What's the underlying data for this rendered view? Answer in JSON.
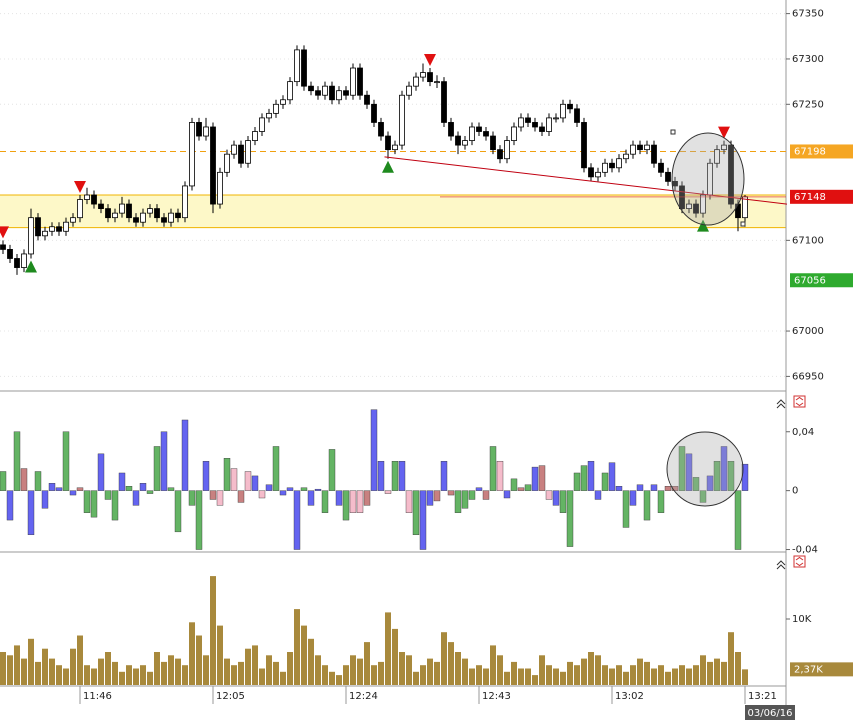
{
  "chart_data": [
    {
      "type": "candlestick",
      "categories": [
        null,
        null,
        null,
        null,
        null,
        null,
        null,
        null,
        null,
        null,
        null,
        "11:46",
        null,
        null,
        null,
        null,
        null,
        null,
        null,
        null,
        null,
        null,
        null,
        null,
        null,
        null,
        null,
        null,
        null,
        null,
        "12:05",
        null,
        null,
        null,
        null,
        null,
        null,
        null,
        null,
        null,
        null,
        null,
        null,
        null,
        null,
        null,
        null,
        null,
        null,
        "12:24",
        null,
        null,
        null,
        null,
        null,
        null,
        null,
        null,
        null,
        null,
        null,
        null,
        null,
        null,
        null,
        null,
        null,
        null,
        "12:43",
        null,
        null,
        null,
        null,
        null,
        null,
        null,
        null,
        null,
        null,
        null,
        null,
        null,
        null,
        null,
        null,
        null,
        null,
        "13:02",
        null,
        null,
        null,
        null,
        null,
        null,
        null,
        null,
        null,
        null,
        null,
        null,
        null,
        null,
        null,
        null,
        null,
        null,
        "13:21"
      ],
      "candles": [
        [
          67095,
          67100,
          67085,
          67090
        ],
        [
          67090,
          67095,
          67075,
          67080
        ],
        [
          67080,
          67085,
          67062,
          67070
        ],
        [
          67070,
          67090,
          67065,
          67085
        ],
        [
          67085,
          67135,
          67080,
          67125
        ],
        [
          67125,
          67130,
          67100,
          67105
        ],
        [
          67105,
          67115,
          67100,
          67110
        ],
        [
          67110,
          67120,
          67105,
          67115
        ],
        [
          67115,
          67120,
          67105,
          67110
        ],
        [
          67110,
          67125,
          67105,
          67120
        ],
        [
          67120,
          67130,
          67115,
          67125
        ],
        [
          67125,
          67150,
          67120,
          67145
        ],
        [
          67145,
          67158,
          67140,
          67150
        ],
        [
          67150,
          67155,
          67135,
          67140
        ],
        [
          67140,
          67145,
          67130,
          67135
        ],
        [
          67135,
          67140,
          67120,
          67125
        ],
        [
          67125,
          67135,
          67120,
          67130
        ],
        [
          67130,
          67148,
          67125,
          67140
        ],
        [
          67140,
          67145,
          67120,
          67125
        ],
        [
          67125,
          67130,
          67115,
          67120
        ],
        [
          67120,
          67135,
          67115,
          67130
        ],
        [
          67130,
          67140,
          67125,
          67135
        ],
        [
          67135,
          67140,
          67120,
          67125
        ],
        [
          67125,
          67130,
          67115,
          67120
        ],
        [
          67120,
          67135,
          67115,
          67130
        ],
        [
          67130,
          67135,
          67120,
          67125
        ],
        [
          67125,
          67165,
          67120,
          67160
        ],
        [
          67160,
          67235,
          67155,
          67230
        ],
        [
          67230,
          67235,
          67210,
          67215
        ],
        [
          67215,
          67235,
          67210,
          67225
        ],
        [
          67225,
          67230,
          67130,
          67140
        ],
        [
          67140,
          67180,
          67135,
          67175
        ],
        [
          67175,
          67200,
          67170,
          67195
        ],
        [
          67195,
          67210,
          67190,
          67205
        ],
        [
          67205,
          67210,
          67180,
          67185
        ],
        [
          67185,
          67215,
          67180,
          67210
        ],
        [
          67210,
          67225,
          67205,
          67220
        ],
        [
          67220,
          67240,
          67215,
          67235
        ],
        [
          67235,
          67245,
          67230,
          67240
        ],
        [
          67240,
          67255,
          67235,
          67250
        ],
        [
          67250,
          67260,
          67245,
          67255
        ],
        [
          67255,
          67280,
          67250,
          67275
        ],
        [
          67275,
          67315,
          67270,
          67310
        ],
        [
          67310,
          67315,
          67265,
          67270
        ],
        [
          67270,
          67275,
          67260,
          67265
        ],
        [
          67265,
          67270,
          67255,
          67260
        ],
        [
          67260,
          67275,
          67255,
          67270
        ],
        [
          67270,
          67275,
          67250,
          67255
        ],
        [
          67255,
          67270,
          67250,
          67265
        ],
        [
          67265,
          67270,
          67255,
          67260
        ],
        [
          67260,
          67295,
          67255,
          67290
        ],
        [
          67290,
          67295,
          67255,
          67260
        ],
        [
          67260,
          67265,
          67245,
          67250
        ],
        [
          67250,
          67255,
          67225,
          67230
        ],
        [
          67230,
          67235,
          67210,
          67215
        ],
        [
          67215,
          67220,
          67190,
          67200
        ],
        [
          67200,
          67210,
          67195,
          67205
        ],
        [
          67205,
          67265,
          67200,
          67260
        ],
        [
          67260,
          67275,
          67255,
          67270
        ],
        [
          67270,
          67285,
          67265,
          67280
        ],
        [
          67280,
          67295,
          67275,
          67285
        ],
        [
          67285,
          67290,
          67270,
          67275
        ],
        [
          67275,
          67282,
          67268,
          67275
        ],
        [
          67275,
          67280,
          67225,
          67230
        ],
        [
          67230,
          67235,
          67210,
          67215
        ],
        [
          67215,
          67220,
          67195,
          67205
        ],
        [
          67205,
          67215,
          67200,
          67210
        ],
        [
          67210,
          67230,
          67205,
          67225
        ],
        [
          67225,
          67230,
          67215,
          67220
        ],
        [
          67220,
          67225,
          67210,
          67215
        ],
        [
          67215,
          67220,
          67195,
          67200
        ],
        [
          67200,
          67205,
          67185,
          67190
        ],
        [
          67190,
          67215,
          67185,
          67210
        ],
        [
          67210,
          67230,
          67205,
          67225
        ],
        [
          67225,
          67240,
          67220,
          67235
        ],
        [
          67235,
          67240,
          67225,
          67230
        ],
        [
          67230,
          67235,
          67220,
          67225
        ],
        [
          67225,
          67230,
          67215,
          67220
        ],
        [
          67220,
          67240,
          67215,
          67235
        ],
        [
          67235,
          67240,
          67230,
          67235
        ],
        [
          67235,
          67255,
          67230,
          67250
        ],
        [
          67250,
          67255,
          67240,
          67245
        ],
        [
          67245,
          67250,
          67225,
          67230
        ],
        [
          67230,
          67235,
          67175,
          67180
        ],
        [
          67180,
          67185,
          67165,
          67170
        ],
        [
          67170,
          67180,
          67165,
          67175
        ],
        [
          67175,
          67190,
          67170,
          67185
        ],
        [
          67185,
          67190,
          67175,
          67180
        ],
        [
          67180,
          67195,
          67175,
          67190
        ],
        [
          67190,
          67200,
          67185,
          67195
        ],
        [
          67195,
          67210,
          67190,
          67205
        ],
        [
          67205,
          67210,
          67195,
          67200
        ],
        [
          67200,
          67210,
          67195,
          67205
        ],
        [
          67205,
          67210,
          67180,
          67185
        ],
        [
          67185,
          67190,
          67170,
          67175
        ],
        [
          67175,
          67180,
          67160,
          67165
        ],
        [
          67165,
          67170,
          67155,
          67160
        ],
        [
          67160,
          67165,
          67130,
          67135
        ],
        [
          67135,
          67145,
          67130,
          67140
        ],
        [
          67140,
          67145,
          67125,
          67130
        ],
        [
          67130,
          67155,
          67125,
          67150
        ],
        [
          67150,
          67190,
          67145,
          67185
        ],
        [
          67185,
          67205,
          67180,
          67200
        ],
        [
          67200,
          67210,
          67195,
          67205
        ],
        [
          67205,
          67210,
          67135,
          67140
        ],
        [
          67140,
          67145,
          67110,
          67125
        ],
        [
          67125,
          67150,
          67115,
          67148
        ]
      ],
      "ylim": [
        66935,
        67365
      ],
      "yticks": [
        66950,
        67000,
        67100,
        67250,
        67300,
        67350
      ],
      "last_color": "#e01010",
      "hline": {
        "value": 67198,
        "color": "#f0a010"
      },
      "zone": {
        "range": [
          67114,
          67150
        ],
        "color": "#fdf8c8",
        "edge_color": "#f0b400"
      },
      "level_tags": [
        {
          "value": 67198,
          "color": "#f5a623"
        },
        {
          "value": 67056,
          "color": "#2eaa2e"
        }
      ],
      "trendline": {
        "start": [
          54.5,
          67192
        ],
        "end": [
          112,
          67140
        ],
        "color": "#c00010"
      },
      "buy_markers": [
        4,
        55,
        100
      ],
      "sell_markers": [
        0,
        11,
        61,
        103
      ],
      "buy_color": "#1e8a1e",
      "sell_color": "#e01010",
      "date_label": "03/06/16"
    },
    {
      "type": "bar",
      "values": [
        0.013,
        -0.02,
        0.04,
        0.015,
        -0.03,
        0.013,
        -0.012,
        0.005,
        0.002,
        0.04,
        -0.003,
        0.002,
        -0.015,
        -0.018,
        0.025,
        -0.006,
        -0.02,
        0.012,
        0.003,
        -0.01,
        0.005,
        -0.002,
        0.03,
        0.04,
        0.002,
        -0.028,
        0.048,
        -0.01,
        -0.04,
        0.02,
        -0.006,
        -0.01,
        0.022,
        0.015,
        -0.008,
        0.013,
        0.01,
        -0.005,
        0.004,
        0.03,
        -0.003,
        0.002,
        -0.04,
        0.002,
        -0.01,
        0.001,
        -0.015,
        0.028,
        -0.01,
        -0.02,
        -0.015,
        -0.015,
        -0.01,
        0.055,
        0.02,
        -0.002,
        0.02,
        0.02,
        -0.015,
        -0.03,
        -0.04,
        -0.01,
        -0.007,
        0.02,
        -0.003,
        -0.015,
        -0.012,
        -0.006,
        0.002,
        -0.006,
        0.03,
        0.02,
        -0.005,
        0.008,
        0.002,
        0.004,
        0.016,
        0.017,
        -0.006,
        -0.01,
        -0.015,
        -0.038,
        0.012,
        0.017,
        0.02,
        -0.006,
        0.012,
        0.019,
        0.003,
        -0.025,
        -0.01,
        0.004,
        -0.02,
        0.004,
        -0.015,
        0.003,
        0.003,
        0.03,
        0.025,
        0.009,
        -0.008,
        0.01,
        0.02,
        0.03,
        0.02,
        -0.04,
        0.018
      ],
      "colors": [
        "#64b464",
        "#6464f0",
        "#64b464",
        "#c88080",
        "#6464f0",
        "#64b464",
        "#6464f0",
        "#6464f0",
        "#6464f0",
        "#64b464",
        "#6464f0",
        "#c88080",
        "#64b464",
        "#64b464",
        "#6464f0",
        "#64b464",
        "#64b464",
        "#6464f0",
        "#64b464",
        "#6464f0",
        "#6464f0",
        "#64b464",
        "#64b464",
        "#6464f0",
        "#64b464",
        "#64b464",
        "#6464f0",
        "#64b464",
        "#64b464",
        "#6464f0",
        "#c88080",
        "#f5bccb",
        "#64b464",
        "#f5bccb",
        "#c88080",
        "#f5bccb",
        "#6464f0",
        "#f5bccb",
        "#6464f0",
        "#64b464",
        "#6464f0",
        "#6464f0",
        "#6464f0",
        "#64b464",
        "#6464f0",
        "#6464f0",
        "#64b464",
        "#64b464",
        "#6464f0",
        "#64b464",
        "#f5bccb",
        "#f5bccb",
        "#c88080",
        "#6464f0",
        "#6464f0",
        "#f5bccb",
        "#64b464",
        "#6464f0",
        "#f5bccb",
        "#64b464",
        "#6464f0",
        "#6464f0",
        "#c88080",
        "#6464f0",
        "#c88080",
        "#64b464",
        "#64b464",
        "#64b464",
        "#6464f0",
        "#c88080",
        "#64b464",
        "#f5bccb",
        "#6464f0",
        "#64b464",
        "#c88080",
        "#64b464",
        "#6464f0",
        "#c88080",
        "#f5bccb",
        "#6464f0",
        "#64b464",
        "#64b464",
        "#64b464",
        "#64b464",
        "#6464f0",
        "#6464f0",
        "#64b464",
        "#6464f0",
        "#6464f0",
        "#64b464",
        "#6464f0",
        "#6464f0",
        "#64b464",
        "#6464f0",
        "#64b464",
        "#c88080",
        "#c88080",
        "#64b464",
        "#6464f0",
        "#64b464",
        "#64b464",
        "#6464f0",
        "#64b464",
        "#6464f0",
        "#64b464",
        "#64b464",
        "#6464f0"
      ],
      "ylim": [
        -0.041,
        0.067
      ],
      "yticks": [
        {
          "value": 0.04,
          "label": "0,04"
        },
        0,
        {
          "value": -0.04,
          "label": "-0,04"
        }
      ]
    },
    {
      "type": "bar",
      "values": [
        5000,
        4500,
        6000,
        4000,
        7000,
        3500,
        5500,
        4000,
        3000,
        2500,
        5500,
        7500,
        3000,
        2500,
        4000,
        5000,
        3500,
        2000,
        3000,
        2500,
        3000,
        2000,
        5000,
        3500,
        4500,
        4000,
        3000,
        9500,
        7500,
        4500,
        16500,
        9000,
        4000,
        3000,
        3500,
        5500,
        6000,
        2500,
        4500,
        3500,
        2000,
        5000,
        11500,
        9000,
        7000,
        4500,
        3000,
        2000,
        1500,
        3000,
        4500,
        4000,
        6500,
        3000,
        3500,
        11000,
        8500,
        5000,
        4500,
        2000,
        3000,
        4000,
        3500,
        8000,
        6500,
        5000,
        4000,
        2500,
        3000,
        2500,
        6000,
        4500,
        2000,
        3500,
        2500,
        2500,
        1500,
        4500,
        3000,
        2500,
        2000,
        3500,
        3000,
        4000,
        5000,
        4500,
        3000,
        2500,
        3000,
        2000,
        3000,
        4000,
        3500,
        2500,
        3000,
        2000,
        2500,
        3000,
        2500,
        3000,
        4500,
        3500,
        4000,
        3500,
        8000,
        5000,
        2370
      ],
      "value_labels": {
        "106": "2,37K"
      },
      "color": "#a8893c",
      "ylim": [
        0,
        20000
      ],
      "yticks": [
        {
          "value": 10000,
          "label": "10K"
        }
      ]
    }
  ]
}
